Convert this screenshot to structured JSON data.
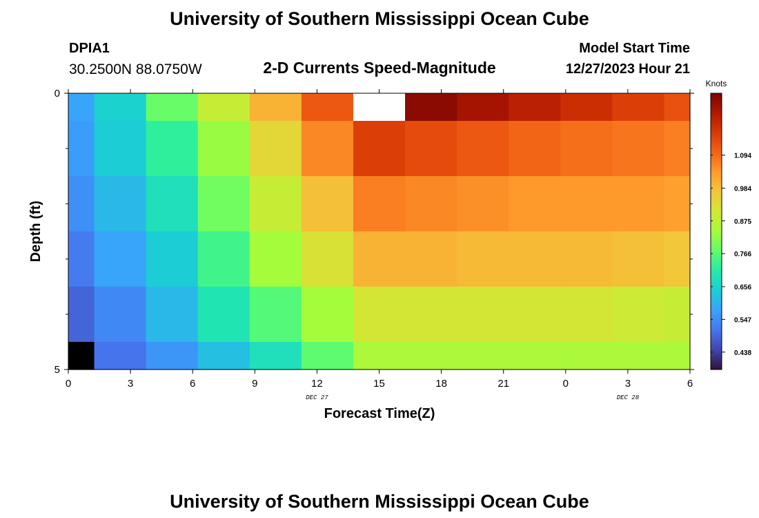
{
  "page": {
    "title": "University of Southern Mississippi Ocean Cube",
    "footer_title": "University of Southern Mississippi Ocean Cube"
  },
  "station": {
    "id": "DPIA1",
    "coords": "30.2500N  88.0750W"
  },
  "model": {
    "label": "Model Start Time",
    "start": "12/27/2023 Hour 21"
  },
  "chart_data": {
    "type": "heatmap",
    "title": "2-D Currents Speed-Magnitude",
    "xlabel": "Forecast Time(Z)",
    "ylabel": "Depth (ft)",
    "x_ticks": [
      "0",
      "3",
      "6",
      "9",
      "12",
      "15",
      "18",
      "21",
      "0",
      "3",
      "6"
    ],
    "x_tick_hours": [
      0,
      3,
      6,
      9,
      12,
      15,
      18,
      21,
      24,
      27,
      30
    ],
    "xlim": [
      0,
      30
    ],
    "y_ticks": [
      "0",
      "5"
    ],
    "ylim": [
      0,
      5
    ],
    "date_labels": [
      {
        "text": "DEC 27",
        "hour": 12
      },
      {
        "text": "DEC 28",
        "hour": 27
      }
    ],
    "cell_x_edges": [
      0,
      1.25,
      3.75,
      6.25,
      8.75,
      11.25,
      13.75,
      16.25,
      18.75,
      21.25,
      23.75,
      26.25,
      28.75,
      30
    ],
    "cell_y_edges": [
      0,
      0.5,
      1.5,
      2.5,
      3.5,
      4.5,
      5
    ],
    "values": [
      [
        0.58,
        0.65,
        0.78,
        0.89,
        1.0,
        1.12,
        null,
        1.28,
        1.25,
        1.22,
        1.19,
        1.16,
        1.13
      ],
      [
        0.57,
        0.64,
        0.72,
        0.83,
        0.94,
        1.06,
        1.16,
        1.14,
        1.12,
        1.1,
        1.09,
        1.08,
        1.07
      ],
      [
        0.55,
        0.61,
        0.68,
        0.79,
        0.89,
        0.98,
        1.07,
        1.06,
        1.05,
        1.04,
        1.04,
        1.04,
        1.03
      ],
      [
        0.52,
        0.58,
        0.64,
        0.74,
        0.84,
        0.92,
        1.0,
        1.0,
        0.99,
        0.99,
        0.99,
        0.98,
        0.97
      ],
      [
        0.49,
        0.54,
        0.61,
        0.69,
        0.76,
        0.84,
        0.91,
        0.91,
        0.91,
        0.91,
        0.91,
        0.9,
        0.89
      ],
      [
        0.35,
        0.51,
        0.56,
        0.62,
        0.68,
        0.77,
        0.85,
        0.85,
        0.85,
        0.85,
        0.85,
        0.85,
        0.85
      ]
    ],
    "null_color": "#ffffff",
    "colorbar": {
      "label": "Knots",
      "ticks": [
        "1.094",
        "0.984",
        "0.875",
        "0.766",
        "0.656",
        "0.547",
        "0.438"
      ],
      "tick_values": [
        1.094,
        0.984,
        0.875,
        0.766,
        0.656,
        0.547,
        0.438
      ],
      "range": [
        0.38,
        1.3
      ],
      "colors": [
        "#30123b",
        "#4145ab",
        "#4675ed",
        "#39a2fc",
        "#1bcfd4",
        "#24eca6",
        "#61fc6c",
        "#a4fc3b",
        "#d1e834",
        "#f3c63a",
        "#fe9b2d",
        "#f36315",
        "#d93806",
        "#b11901",
        "#7a0402"
      ]
    }
  }
}
